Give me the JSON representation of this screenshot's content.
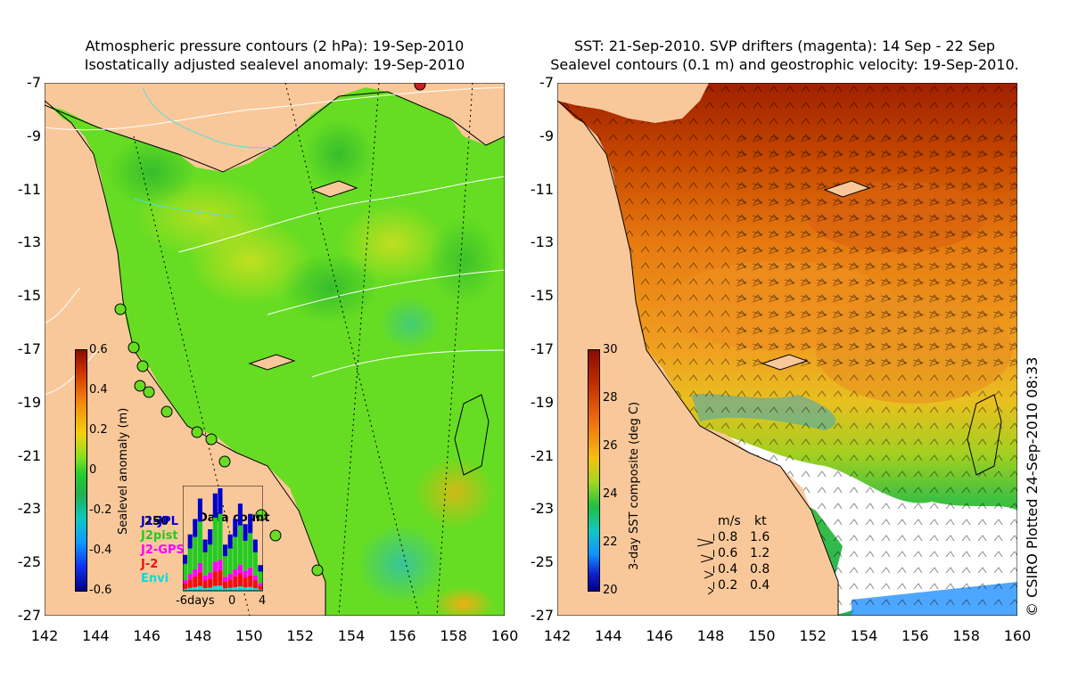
{
  "left_panel": {
    "title_line1": "Atmospheric pressure contours (2 hPa): 19-Sep-2010",
    "title_line2": "Isostatically adjusted sealevel anomaly: 19-Sep-2010",
    "y_ticks": [
      "-7",
      "-9",
      "-11",
      "-13",
      "-15",
      "-17",
      "-19",
      "-21",
      "-23",
      "-25",
      "-27"
    ],
    "x_ticks": [
      "142",
      "144",
      "146",
      "148",
      "150",
      "152",
      "154",
      "156",
      "158",
      "160"
    ],
    "colorbar": {
      "title": "Sealevel anomaly (m)",
      "ticks": [
        "0.6",
        "0.4",
        "0.2",
        "0",
        "-0.2",
        "-0.4",
        "-0.6"
      ]
    },
    "data_count": {
      "title": "Data count",
      "max_label": "250",
      "missions": [
        {
          "name": "J1-JPL",
          "color": "#0000cc"
        },
        {
          "name": "J2pist",
          "color": "#22cc22"
        },
        {
          "name": "J2-GPS",
          "color": "#ff00ff"
        },
        {
          "name": "J-2",
          "color": "#ee1111"
        },
        {
          "name": "Envi",
          "color": "#00dddd"
        }
      ],
      "x_axis": [
        "-6days",
        "0",
        "4"
      ],
      "bars_fraction": [
        0.35,
        0.55,
        0.7,
        0.9,
        0.5,
        0.6,
        0.95,
        1.0,
        0.45,
        0.55,
        0.7,
        0.85,
        0.65,
        0.75,
        0.5,
        0.25
      ]
    }
  },
  "right_panel": {
    "title_line1": "SST: 21-Sep-2010. SVP drifters (magenta): 14 Sep - 22 Sep",
    "title_line2": "Sealevel contours (0.1 m) and geostrophic velocity: 19-Sep-2010.",
    "y_ticks": [
      "-7",
      "-9",
      "-11",
      "-13",
      "-15",
      "-17",
      "-19",
      "-21",
      "-23",
      "-25",
      "-27"
    ],
    "x_ticks": [
      "142",
      "144",
      "146",
      "148",
      "150",
      "152",
      "154",
      "156",
      "158",
      "160"
    ],
    "colorbar": {
      "title": "3-day SST composite (deg C)",
      "ticks": [
        "30",
        "28",
        "26",
        "24",
        "22",
        "20"
      ]
    },
    "velocity_legend": {
      "header_ms": "m/s",
      "header_kt": "kt",
      "rows": [
        {
          "ms": "0.8",
          "kt": "1.6"
        },
        {
          "ms": "0.6",
          "kt": "1.2"
        },
        {
          "ms": "0.4",
          "kt": "0.8"
        },
        {
          "ms": "0.2",
          "kt": "0.4"
        }
      ]
    }
  },
  "credit": "© CSIRO Plotted 24-Sep-2010 08:33",
  "colors": {
    "land": "#f9c89a",
    "sla_green": "#33cc22",
    "sst_orange": "#ee9922"
  }
}
